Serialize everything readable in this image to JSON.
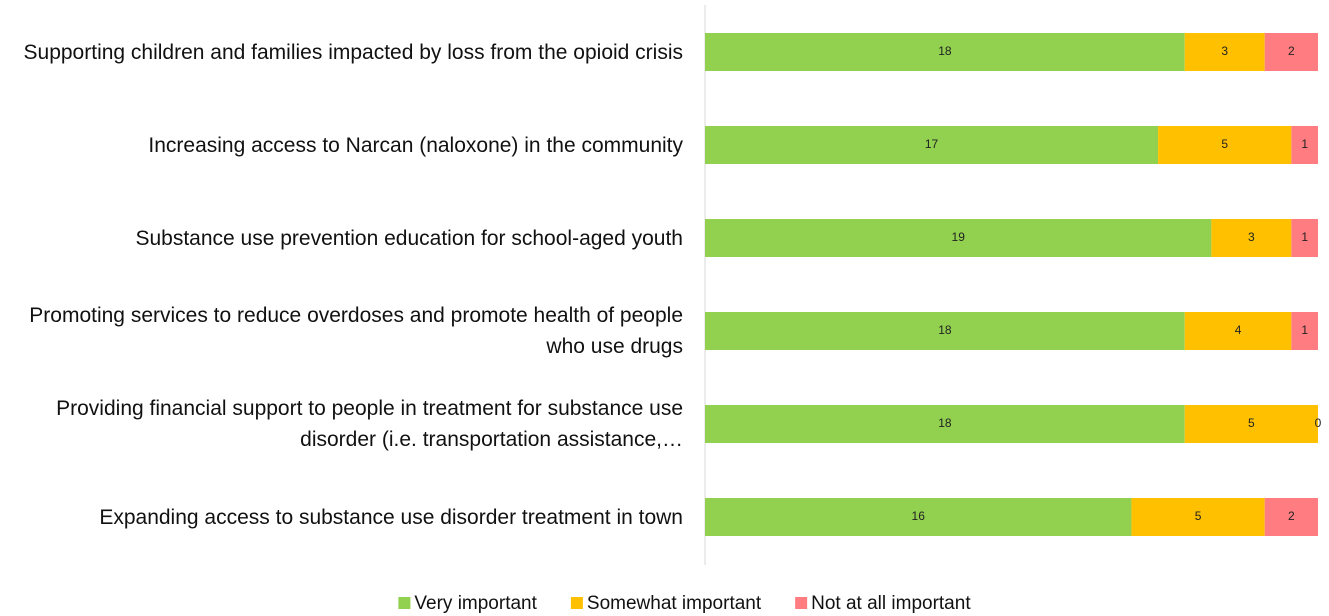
{
  "chart_data": {
    "type": "stacked-bar",
    "orientation": "horizontal",
    "categories": [
      "Supporting children and families impacted by loss from the opioid crisis",
      "Increasing access to Narcan (naloxone) in the community",
      "Substance use prevention education for school-aged youth",
      "Promoting services to reduce overdoses and promote health of people who use drugs",
      "Providing financial support to people in treatment for substance use disorder (i.e. transportation assistance,…",
      "Expanding access to substance use disorder treatment in town"
    ],
    "series": [
      {
        "name": "Very important",
        "color": "#92d050",
        "values": [
          18,
          17,
          19,
          18,
          18,
          16
        ]
      },
      {
        "name": "Somewhat important",
        "color": "#ffc000",
        "values": [
          3,
          5,
          3,
          4,
          5,
          5
        ]
      },
      {
        "name": "Not at all important",
        "color": "#ff7c80",
        "values": [
          2,
          1,
          1,
          1,
          0,
          2
        ]
      }
    ],
    "xlim": [
      0,
      23
    ],
    "legend": "bottom"
  }
}
